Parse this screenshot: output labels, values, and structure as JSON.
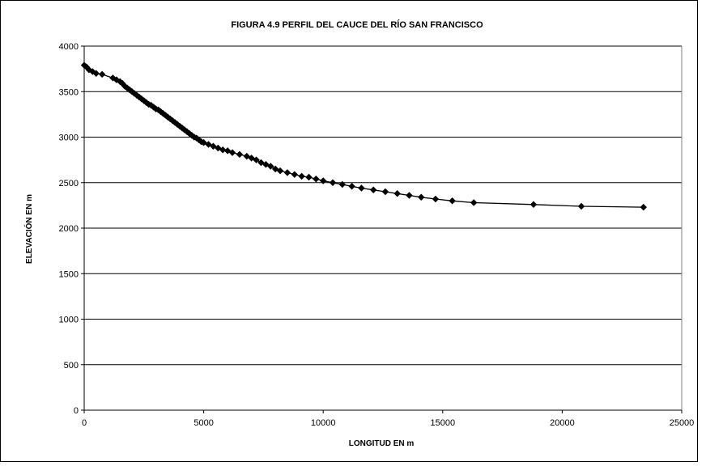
{
  "chart_data": {
    "type": "line",
    "title": "FIGURA 4.9 PERFIL DEL CAUCE DEL RÍO SAN FRANCISCO",
    "xlabel": "LONGITUD EN m",
    "ylabel": "ELEVACIÓN EN m",
    "xlim": [
      0,
      25000
    ],
    "ylim": [
      0,
      4000
    ],
    "xticks": [
      "0",
      "5000",
      "10000",
      "15000",
      "20000",
      "25000"
    ],
    "yticks": [
      "0",
      "500",
      "1000",
      "1500",
      "2000",
      "2500",
      "3000",
      "3500",
      "4000"
    ],
    "grid": "horizontal",
    "legend": "none",
    "marker": "diamond",
    "colors": {
      "line": "#000000",
      "marker": "#000000",
      "grid": "#000000",
      "plot_border": "#808080"
    },
    "series": [
      {
        "x": [
          0,
          100,
          200,
          350,
          500,
          750,
          1200,
          1350,
          1500,
          1600,
          1700,
          1800,
          1900,
          2000,
          2100,
          2200,
          2300,
          2400,
          2500,
          2600,
          2700,
          2800,
          2900,
          3000,
          3100,
          3200,
          3300,
          3400,
          3500,
          3600,
          3700,
          3800,
          3900,
          4000,
          4100,
          4200,
          4300,
          4400,
          4500,
          4600,
          4700,
          4800,
          4900,
          5000,
          5200,
          5400,
          5600,
          5800,
          6000,
          6200,
          6500,
          6800,
          7000,
          7200,
          7400,
          7600,
          7800,
          8000,
          8200,
          8500,
          8800,
          9100,
          9400,
          9700,
          10000,
          10400,
          10800,
          11200,
          11600,
          12100,
          12600,
          13100,
          13600,
          14100,
          14700,
          15400,
          16300,
          18800,
          20800,
          23400
        ],
        "y": [
          3790,
          3770,
          3740,
          3720,
          3700,
          3690,
          3650,
          3630,
          3610,
          3590,
          3560,
          3540,
          3520,
          3500,
          3480,
          3460,
          3440,
          3420,
          3400,
          3380,
          3360,
          3350,
          3330,
          3310,
          3300,
          3280,
          3260,
          3240,
          3220,
          3200,
          3180,
          3160,
          3140,
          3120,
          3100,
          3080,
          3060,
          3040,
          3020,
          3000,
          2990,
          2970,
          2950,
          2940,
          2920,
          2900,
          2880,
          2860,
          2850,
          2830,
          2810,
          2790,
          2770,
          2750,
          2720,
          2700,
          2680,
          2650,
          2630,
          2610,
          2590,
          2570,
          2560,
          2540,
          2520,
          2500,
          2480,
          2460,
          2440,
          2420,
          2400,
          2380,
          2360,
          2340,
          2320,
          2300,
          2280,
          2260,
          2240,
          2230
        ]
      }
    ]
  }
}
